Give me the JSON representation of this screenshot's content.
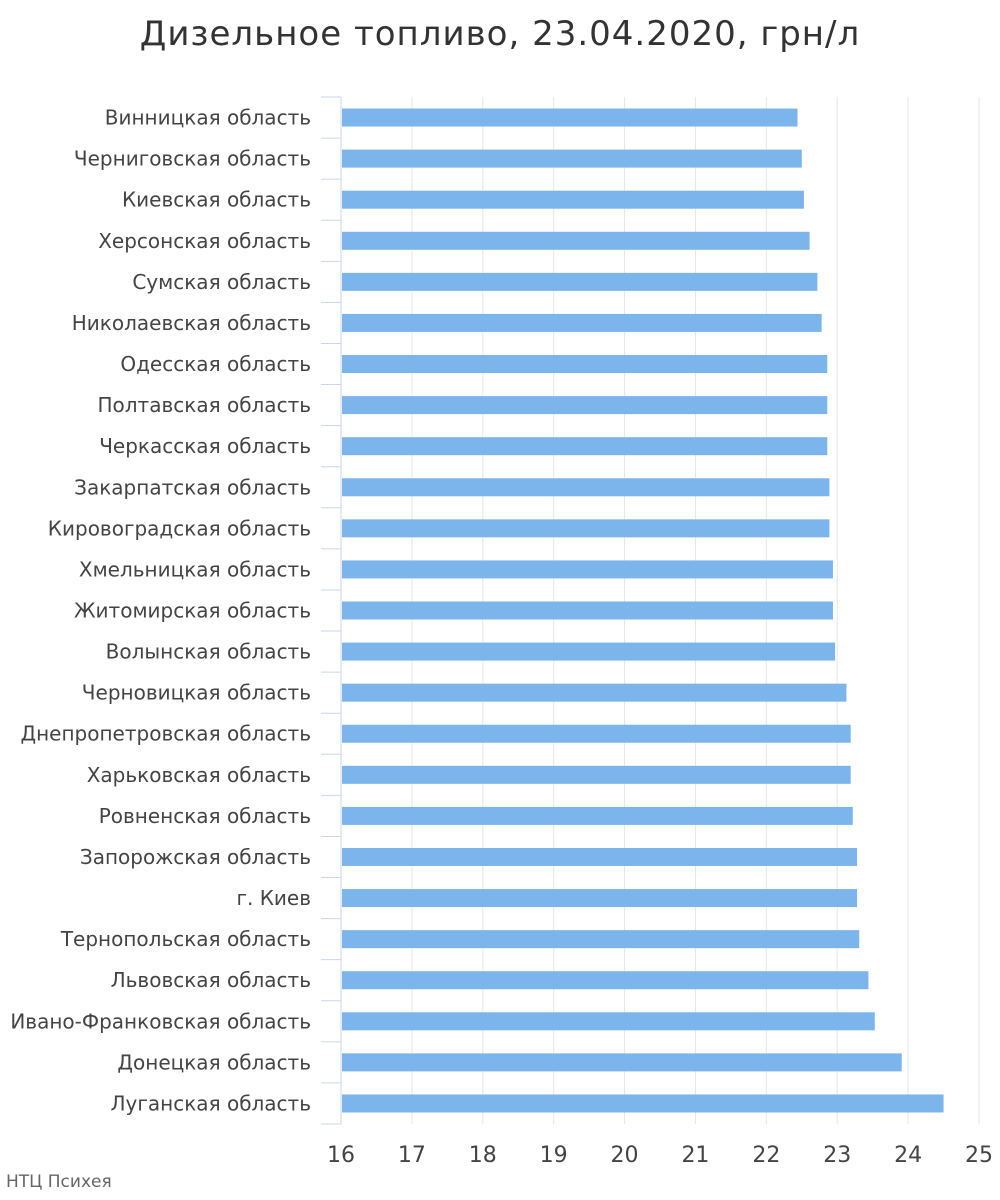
{
  "chart_data": {
    "type": "bar",
    "orientation": "horizontal",
    "title": "Дизельное топливо, 23.04.2020, грн/л",
    "categories": [
      "Винницкая область",
      "Черниговская область",
      "Киевская область",
      "Херсонская область",
      "Сумская область",
      "Николаевская область",
      "Одесская область",
      "Полтавская область",
      "Черкасская область",
      "Закарпатская область",
      "Кировоградская область",
      "Хмельницкая область",
      "Житомирская область",
      "Волынская область",
      "Черновицкая область",
      "Днепропетровская область",
      "Харьковская область",
      "Ровненская область",
      "Запорожская область",
      "г. Киев",
      "Тернопольская область",
      "Львовская область",
      "Ивано-Франковская область",
      "Донецкая область",
      "Луганская область"
    ],
    "values": [
      22.44,
      22.5,
      22.53,
      22.61,
      22.72,
      22.78,
      22.86,
      22.86,
      22.86,
      22.89,
      22.89,
      22.94,
      22.94,
      22.97,
      23.13,
      23.19,
      23.19,
      23.22,
      23.28,
      23.28,
      23.31,
      23.44,
      23.53,
      23.91,
      24.5
    ],
    "xlim": [
      16,
      25
    ],
    "xticks": [
      16,
      17,
      18,
      19,
      20,
      21,
      22,
      23,
      24,
      25
    ],
    "grid": true,
    "bar_color": "#7cb5ec"
  },
  "credit": "НТЦ Психея"
}
